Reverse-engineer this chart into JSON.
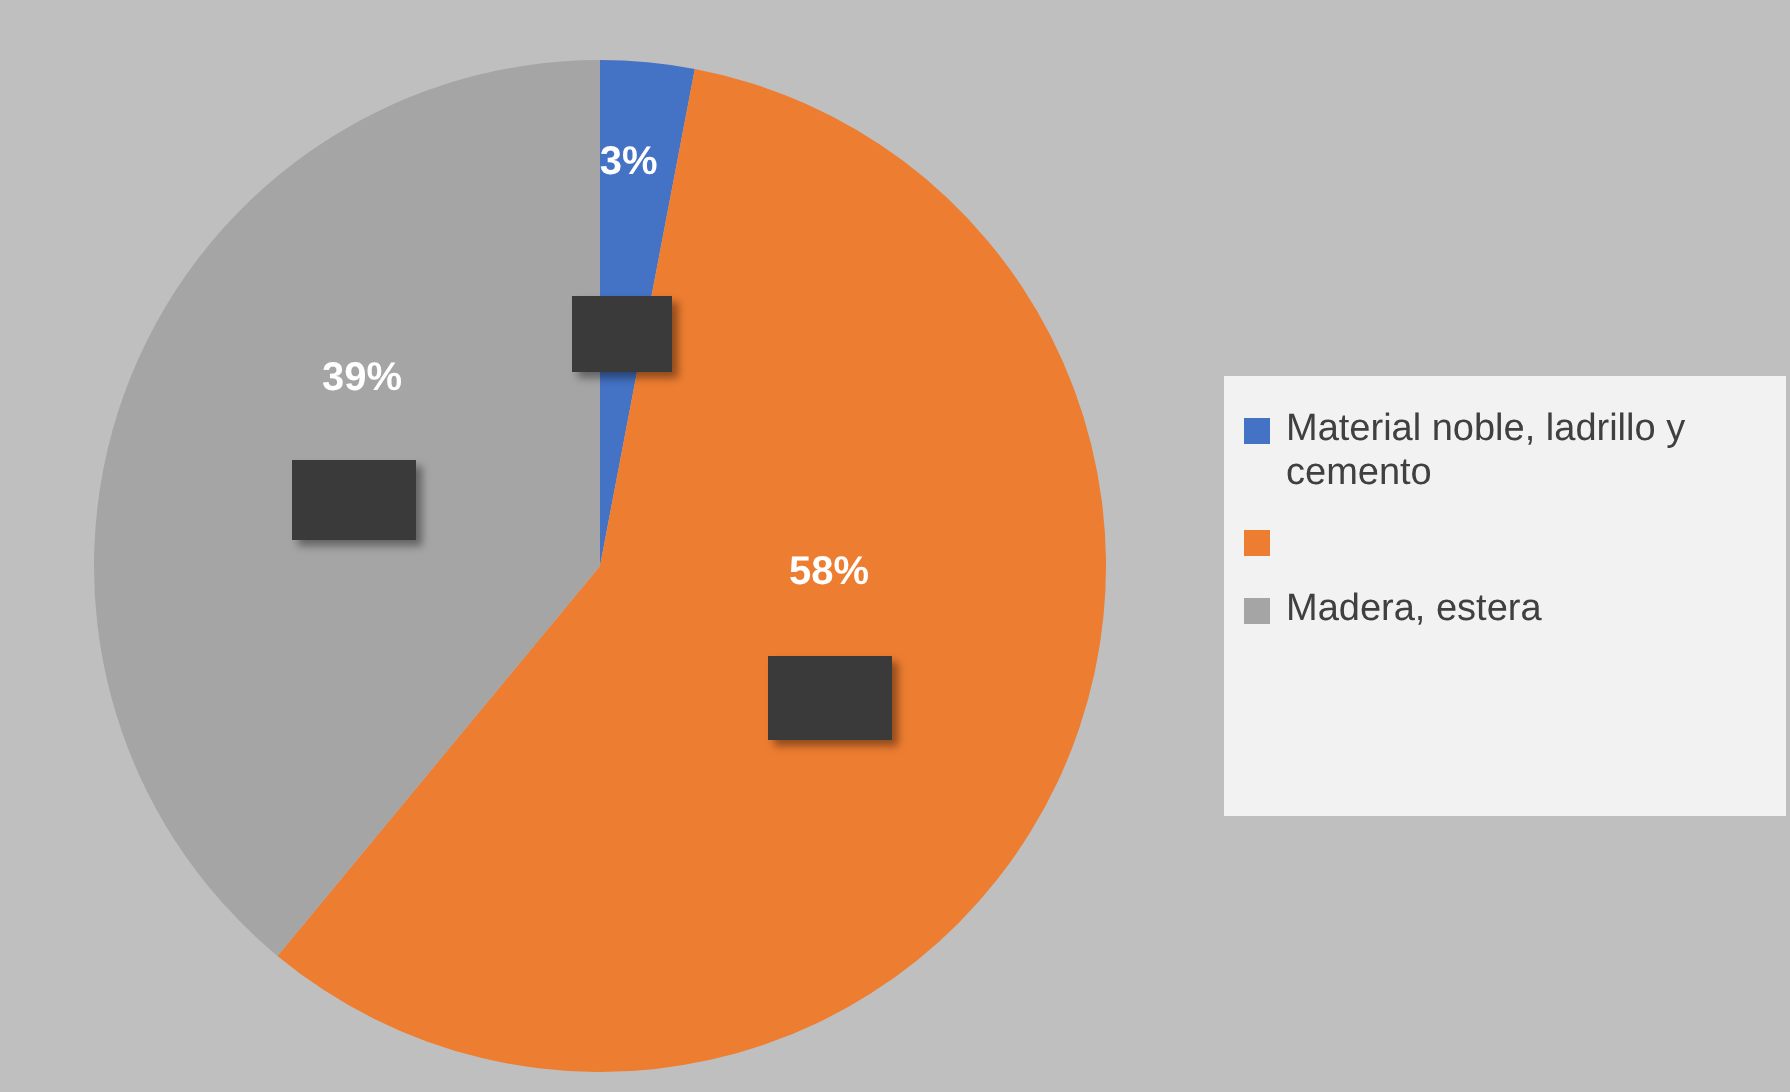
{
  "chart_data": {
    "type": "pie",
    "categories": [
      "Material noble, ladrillo y cemento",
      null,
      "Madera, estera"
    ],
    "values": [
      3,
      58,
      39
    ],
    "colors": [
      "#4472c4",
      "#ed7d31",
      "#a5a5a5"
    ],
    "value_labels": [
      "3%",
      "58%",
      "39%"
    ],
    "legend": "right"
  }
}
